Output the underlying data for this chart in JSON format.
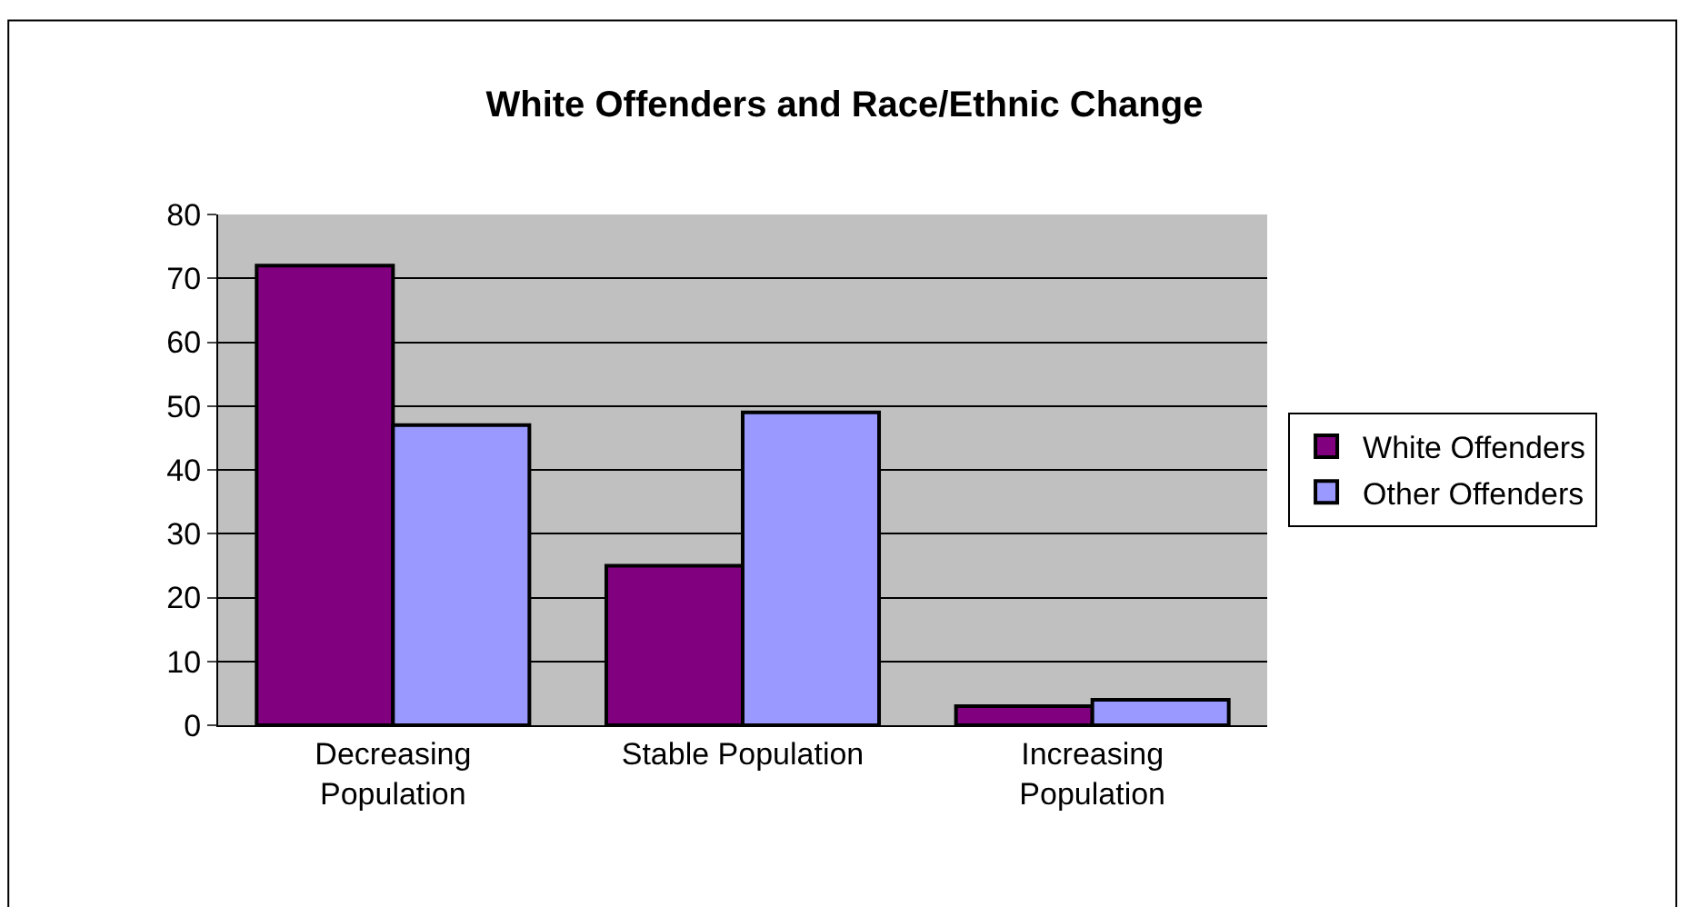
{
  "chart_data": {
    "type": "bar",
    "title": "White Offenders and Race/Ethnic Change",
    "categories": [
      "Decreasing Population",
      "Stable Population",
      "Increasing Population"
    ],
    "series": [
      {
        "name": "White Offenders",
        "color": "#800080",
        "values": [
          72,
          25,
          3
        ]
      },
      {
        "name": "Other Offenders",
        "color": "#9999ff",
        "values": [
          47,
          49,
          4
        ]
      }
    ],
    "ylim": [
      0,
      80
    ],
    "yticks": [
      0,
      10,
      20,
      30,
      40,
      50,
      60,
      70,
      80
    ],
    "grid": "y",
    "legend": "right"
  }
}
